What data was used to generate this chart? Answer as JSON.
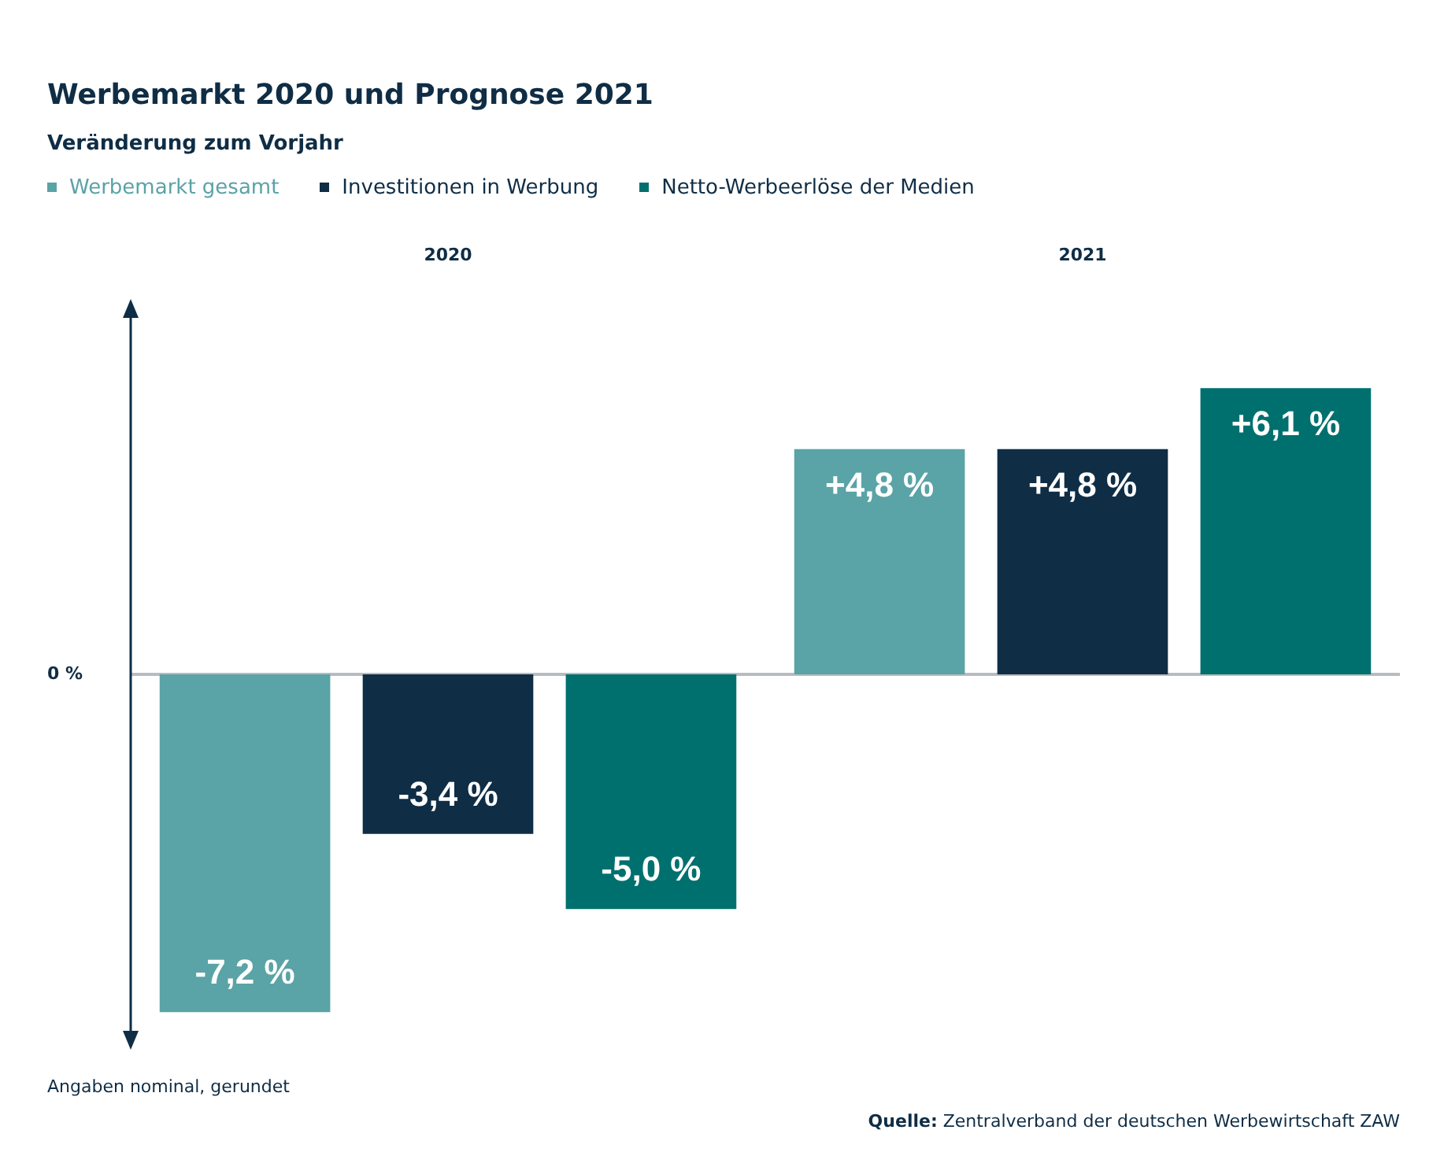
{
  "chart_data": {
    "type": "bar",
    "title": "Werbemarkt 2020 und Prognose 2021",
    "subtitle": "Veränderung zum Vorjahr",
    "categories": [
      "2020",
      "2021"
    ],
    "series": [
      {
        "name": "Werbemarkt gesamt",
        "color": "#5aa3a6",
        "values": [
          -7.2,
          4.8
        ],
        "value_labels": [
          "-7,2 %",
          "+4,8 %"
        ]
      },
      {
        "name": "Investitionen in Werbung",
        "color": "#0f2d45",
        "values": [
          -3.4,
          4.8
        ],
        "value_labels": [
          "-3,4 %",
          "+4,8 %"
        ]
      },
      {
        "name": "Netto-Werbeerlöse der Medien",
        "color": "#00706e",
        "values": [
          -5.0,
          6.1
        ],
        "value_labels": [
          "-5,0 %",
          "+6,1 %"
        ]
      }
    ],
    "ref_lines": [
      {
        "axis": "y",
        "value": 0,
        "label": "0 %",
        "color": "#b8bcc0"
      }
    ],
    "legend": "top left",
    "annotations": [
      "Angaben nominal, gerundet",
      "Quelle: Zentralverband der deutschen Werbewirtschaft ZAW"
    ]
  }
}
